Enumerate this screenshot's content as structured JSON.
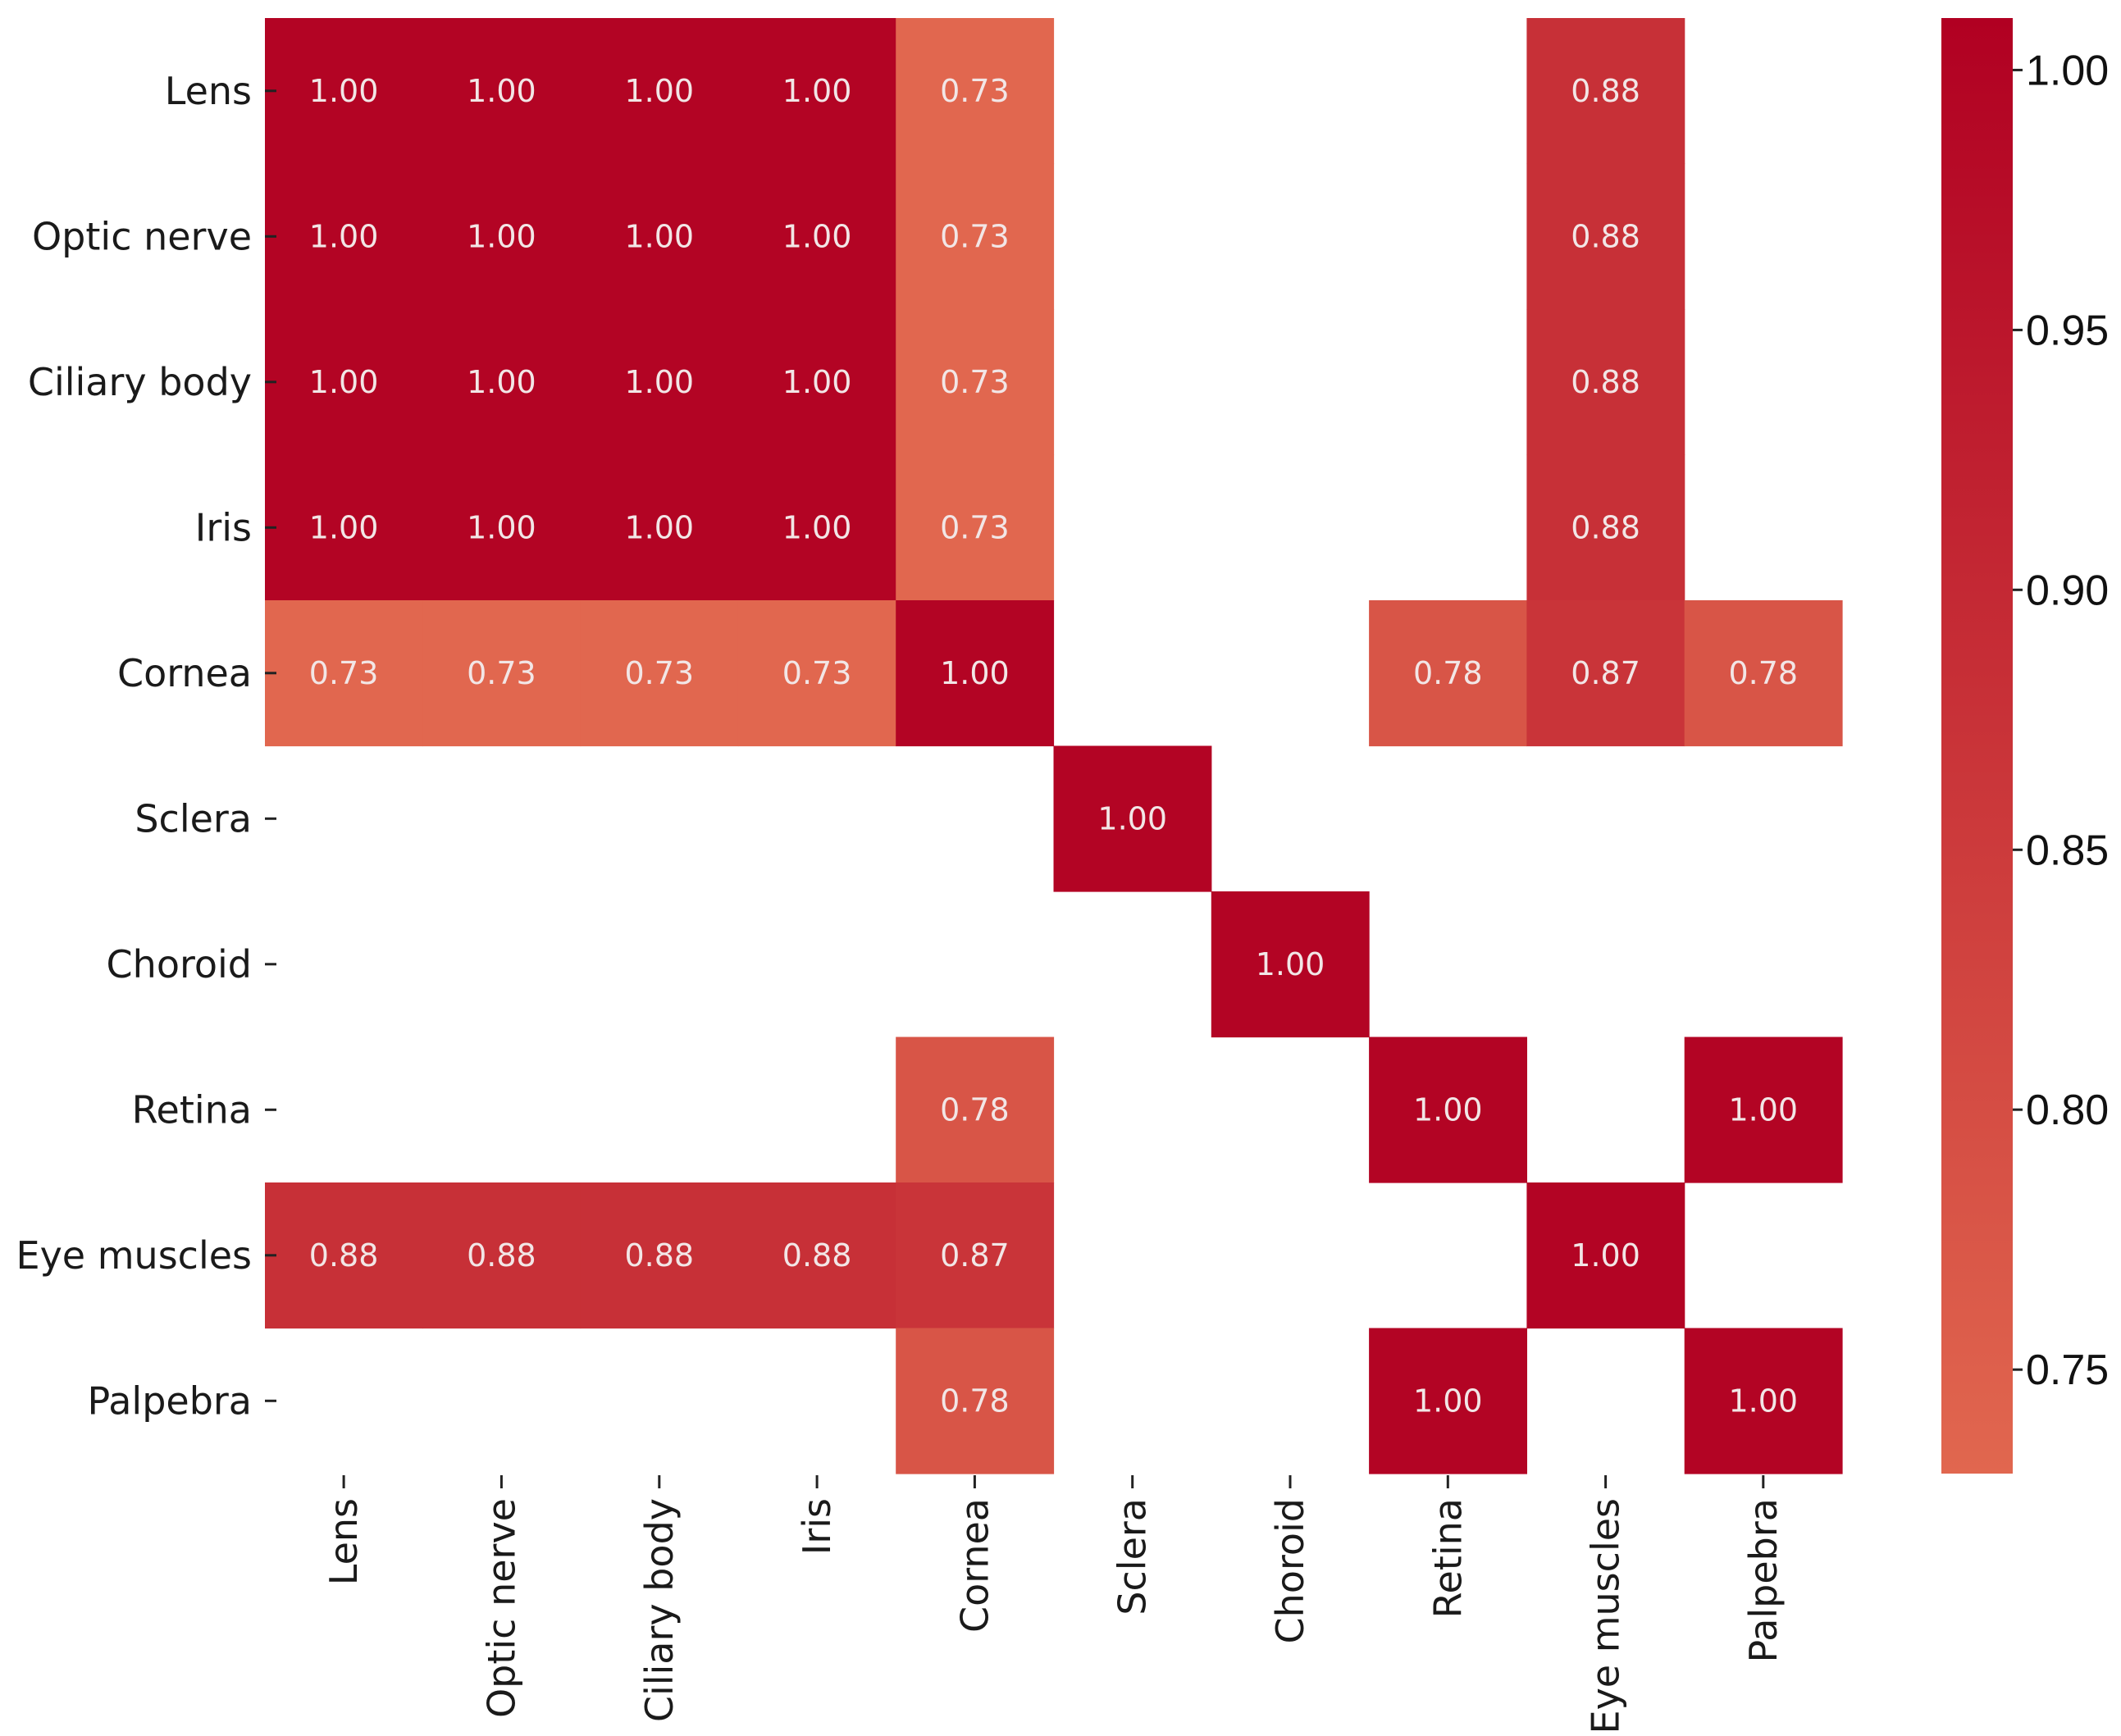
{
  "chart_data": {
    "type": "heatmap",
    "row_labels": [
      "Lens",
      "Optic nerve",
      "Ciliary body",
      "Iris",
      "Cornea",
      "Sclera",
      "Choroid",
      "Retina",
      "Eye muscles",
      "Palpebra"
    ],
    "col_labels": [
      "Lens",
      "Optic nerve",
      "Ciliary body",
      "Iris",
      "Cornea",
      "Sclera",
      "Choroid",
      "Retina",
      "Eye muscles",
      "Palpebra"
    ],
    "values": [
      [
        1.0,
        1.0,
        1.0,
        1.0,
        0.73,
        null,
        null,
        null,
        0.88,
        null
      ],
      [
        1.0,
        1.0,
        1.0,
        1.0,
        0.73,
        null,
        null,
        null,
        0.88,
        null
      ],
      [
        1.0,
        1.0,
        1.0,
        1.0,
        0.73,
        null,
        null,
        null,
        0.88,
        null
      ],
      [
        1.0,
        1.0,
        1.0,
        1.0,
        0.73,
        null,
        null,
        null,
        0.88,
        null
      ],
      [
        0.73,
        0.73,
        0.73,
        0.73,
        1.0,
        null,
        null,
        0.78,
        0.87,
        0.78
      ],
      [
        null,
        null,
        null,
        null,
        null,
        1.0,
        null,
        null,
        null,
        null
      ],
      [
        null,
        null,
        null,
        null,
        null,
        null,
        1.0,
        null,
        null,
        null
      ],
      [
        null,
        null,
        null,
        null,
        0.78,
        null,
        null,
        1.0,
        null,
        1.0
      ],
      [
        0.88,
        0.88,
        0.88,
        0.88,
        0.87,
        null,
        null,
        null,
        1.0,
        null
      ],
      [
        null,
        null,
        null,
        null,
        0.78,
        null,
        null,
        1.0,
        null,
        1.0
      ]
    ],
    "value_format": "0.00",
    "colorbar": {
      "range": [
        0.73,
        1.01
      ],
      "ticks": [
        0.75,
        0.8,
        0.85,
        0.9,
        0.95,
        1.0
      ],
      "tick_labels": [
        "0.75",
        "0.80",
        "0.85",
        "0.90",
        "0.95",
        "1.00"
      ],
      "color_low": "#e1674f",
      "color_high": "#b10022"
    },
    "title": "",
    "xlabel": "",
    "ylabel": ""
  }
}
